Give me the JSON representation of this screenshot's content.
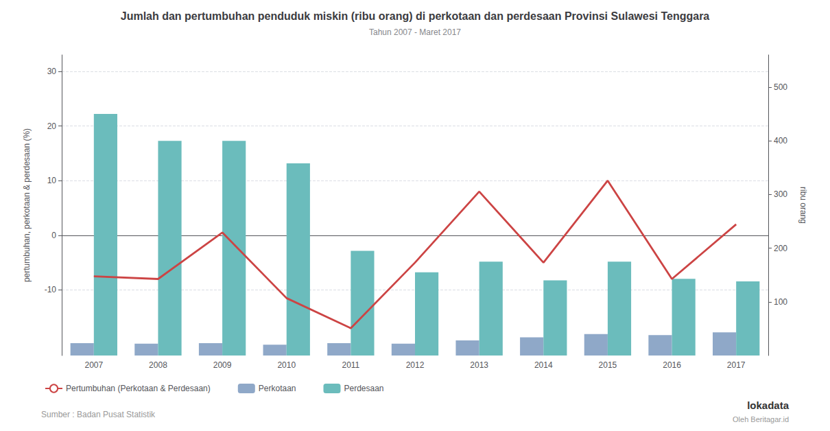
{
  "chart_data": {
    "type": "bar",
    "title": "Jumlah dan pertumbuhan penduduk miskin (ribu orang) di perkotaan dan perdesaan Provinsi Sulawesi Tenggara",
    "subtitle": "Tahun 2007 - Maret 2017",
    "source": "Sumber : Badan Pusat Statistik",
    "annotations": [
      "lokadata",
      "Oleh Beritagar.id"
    ],
    "categories": [
      "2007",
      "2008",
      "2009",
      "2010",
      "2011",
      "2012",
      "2013",
      "2014",
      "2015",
      "2016",
      "2017"
    ],
    "series": [
      {
        "name": "Pertumbuhan (Perkotaan & Perdesaan)",
        "type": "line",
        "axis": "y",
        "color": "#CC4444",
        "values": [
          -7.5,
          -8.0,
          0.5,
          -11.5,
          -17.0,
          -5.0,
          8.0,
          -5.0,
          10.0,
          -8.0,
          2.0
        ]
      },
      {
        "name": "Perkotaan",
        "type": "bar",
        "axis": "y2",
        "color": "#8FA8C8",
        "values": [
          23,
          22,
          23,
          20,
          23,
          22,
          28,
          34,
          40,
          38,
          43
        ]
      },
      {
        "name": "Perdesaan",
        "type": "bar",
        "axis": "y2",
        "color": "#6BBCBC",
        "values": [
          450,
          400,
          400,
          358,
          195,
          155,
          175,
          140,
          175,
          143,
          138
        ]
      }
    ],
    "ylabel": "pertumbuhan, perkotaan & perdesaan (%)",
    "y2label": "ribu orang",
    "ylim": [
      -22,
      33
    ],
    "yticks": [
      -10,
      0,
      10,
      20,
      30
    ],
    "y2lim": [
      0,
      560
    ],
    "y2ticks": [
      100,
      200,
      300,
      400,
      500
    ],
    "grid": true,
    "legend": "bottom"
  }
}
